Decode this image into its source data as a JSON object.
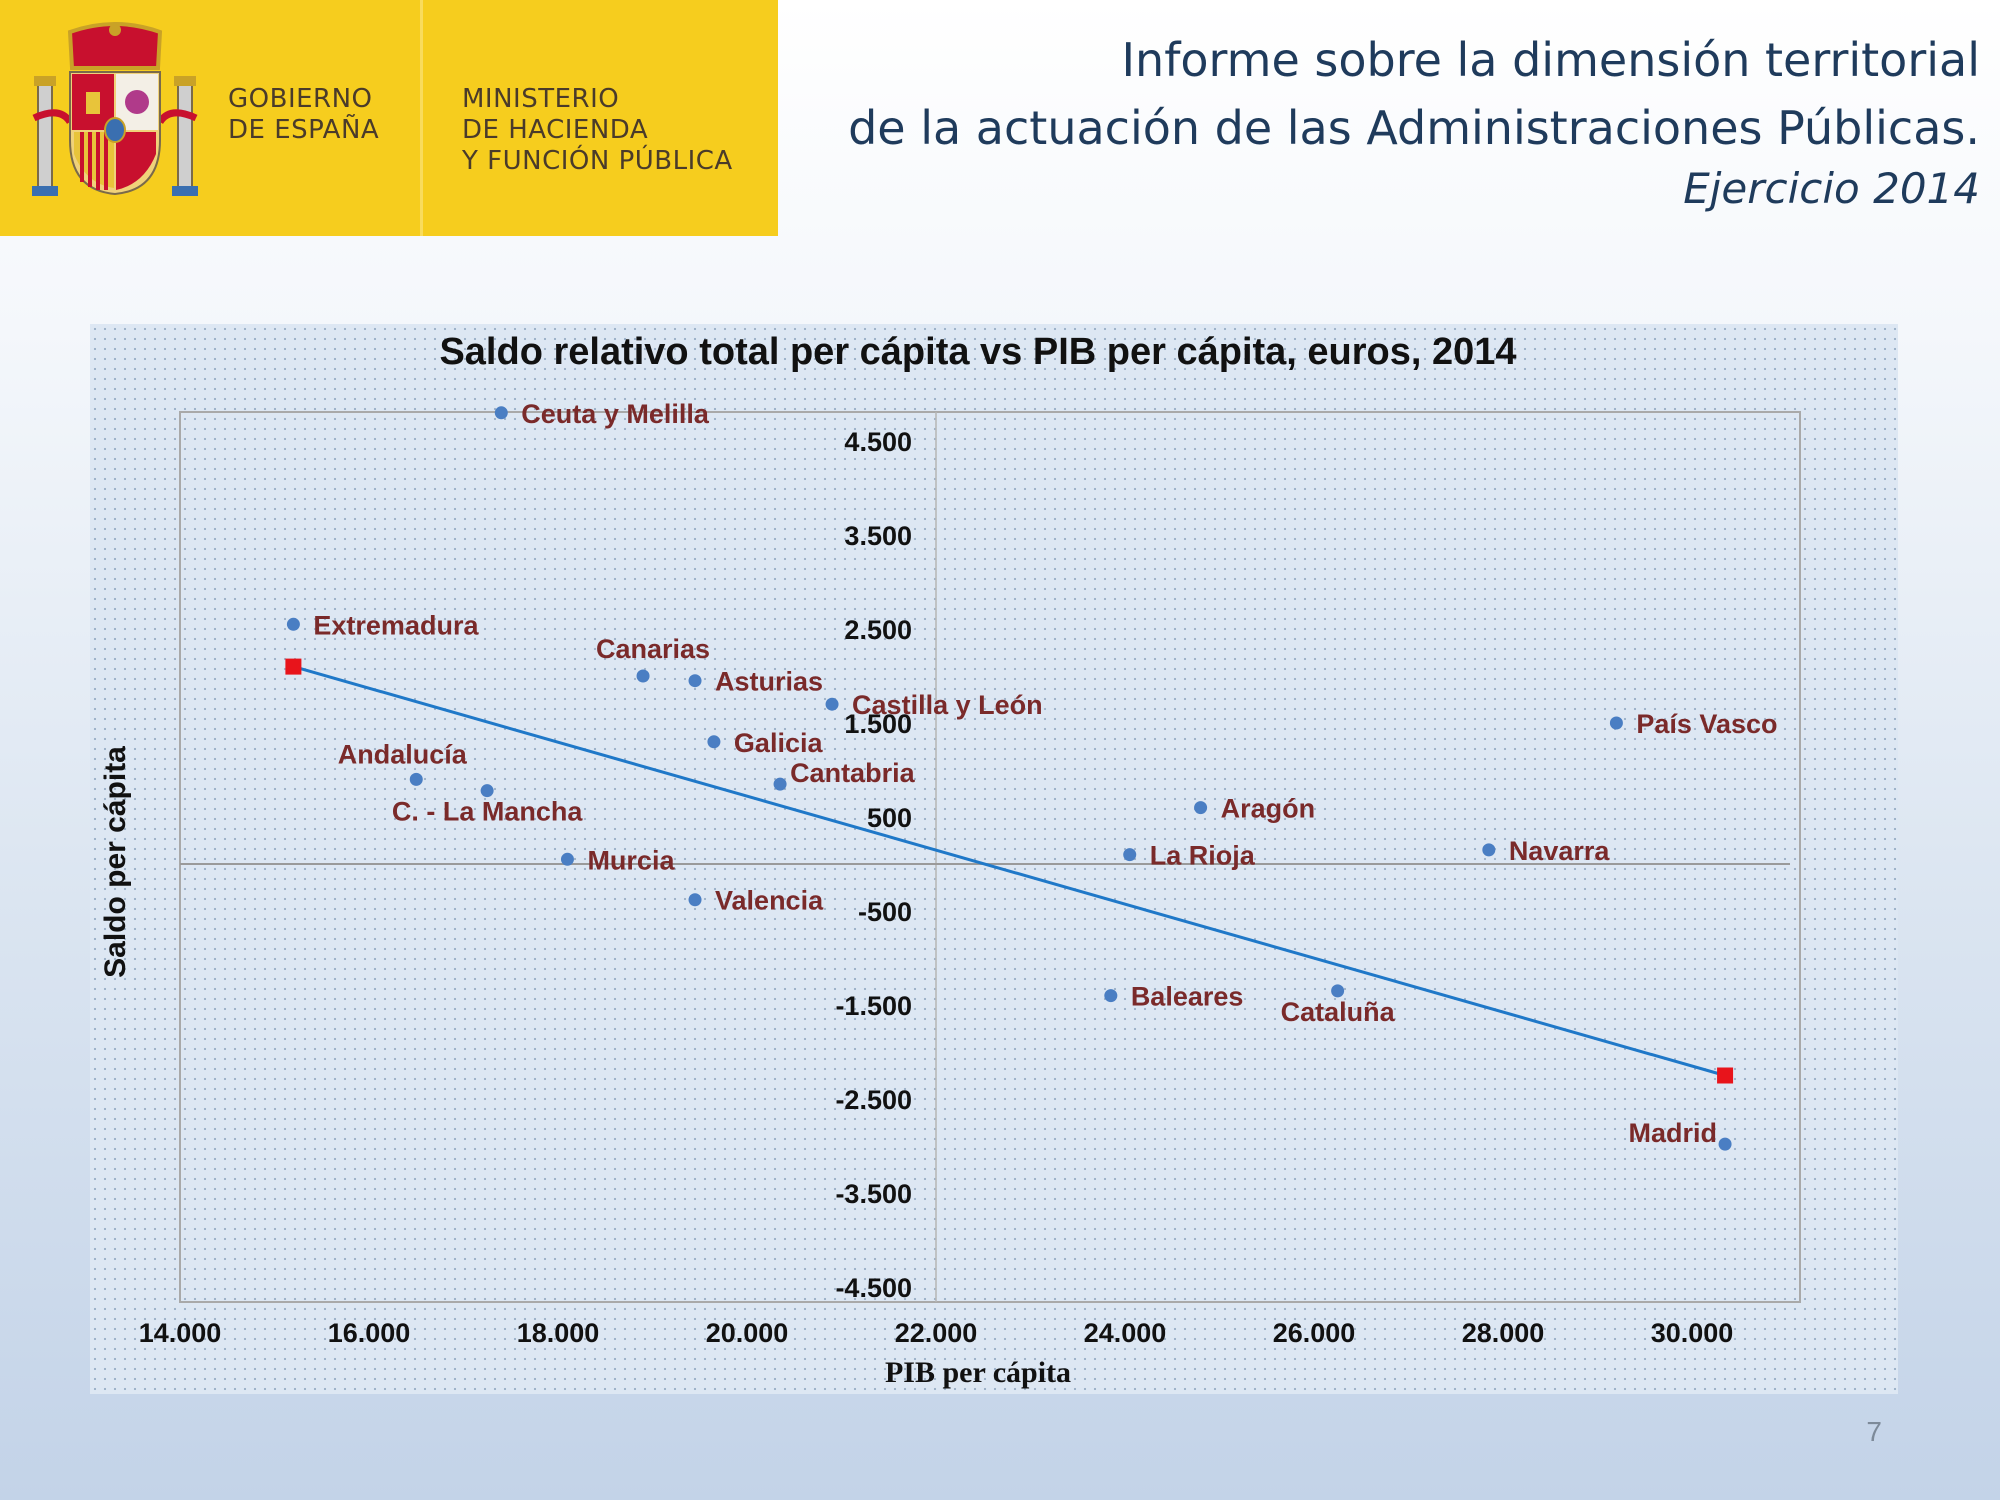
{
  "logo": {
    "gobierno_lines": [
      "GOBIERNO",
      "DE ESPAÑA"
    ],
    "ministerio_lines": [
      "MINISTERIO",
      "DE HACIENDA",
      "Y FUNCIÓN PÚBLICA"
    ],
    "brand_color": "#f6cd1e"
  },
  "header": {
    "title_line1": "Informe sobre la dimensión territorial",
    "title_line2": "de la actuación de las Administraciones Públicas.",
    "subtitle": "Ejercicio 2014"
  },
  "page_number": "7",
  "chart_data": {
    "type": "scatter",
    "title": "Saldo relativo total per cápita vs PIB per cápita, euros, 2014",
    "xlabel": "PIB per cápita",
    "ylabel": "Saldo per cápita",
    "xlim": [
      14000,
      31000
    ],
    "ylim": [
      -4500,
      5000
    ],
    "x_axis_crosses_y_at": 22000,
    "x_ticks": [
      14000,
      16000,
      18000,
      20000,
      22000,
      24000,
      26000,
      28000,
      30000
    ],
    "x_tick_labels": [
      "14.000",
      "16.000",
      "18.000",
      "20.000",
      "22.000",
      "24.000",
      "26.000",
      "28.000",
      "30.000"
    ],
    "y_ticks": [
      4500,
      3500,
      2500,
      1500,
      500,
      -500,
      -1500,
      -2500,
      -3500,
      -4500
    ],
    "y_tick_labels": [
      "4.500",
      "3.500",
      "2.500",
      "1.500",
      "500",
      "-500",
      "-1.500",
      "-2.500",
      "-3.500",
      "-4.500"
    ],
    "point_color": "#4a7ec3",
    "label_color": "#7a2a2a",
    "points": [
      {
        "name": "Ceuta y Melilla",
        "x": 17400,
        "y": 4800,
        "anchor": "right"
      },
      {
        "name": "Extremadura",
        "x": 15200,
        "y": 2550,
        "anchor": "right"
      },
      {
        "name": "Canarias",
        "x": 18900,
        "y": 2000,
        "anchor": "above"
      },
      {
        "name": "Asturias",
        "x": 19450,
        "y": 1950,
        "anchor": "right"
      },
      {
        "name": "Castilla y León",
        "x": 20900,
        "y": 1700,
        "anchor": "right"
      },
      {
        "name": "Galicia",
        "x": 19650,
        "y": 1300,
        "anchor": "right"
      },
      {
        "name": "Cantabria",
        "x": 20350,
        "y": 850,
        "anchor": "right-up"
      },
      {
        "name": "Andalucía",
        "x": 16500,
        "y": 900,
        "anchor": "above-left"
      },
      {
        "name": "C. - La Mancha",
        "x": 17250,
        "y": 780,
        "anchor": "below"
      },
      {
        "name": "Murcia",
        "x": 18100,
        "y": 50,
        "anchor": "right"
      },
      {
        "name": "Valencia",
        "x": 19450,
        "y": -380,
        "anchor": "right"
      },
      {
        "name": "País Vasco",
        "x": 29200,
        "y": 1500,
        "anchor": "right"
      },
      {
        "name": "Aragón",
        "x": 24800,
        "y": 600,
        "anchor": "right"
      },
      {
        "name": "La Rioja",
        "x": 24050,
        "y": 100,
        "anchor": "right"
      },
      {
        "name": "Navarra",
        "x": 27850,
        "y": 150,
        "anchor": "right"
      },
      {
        "name": "Baleares",
        "x": 23850,
        "y": -1400,
        "anchor": "right"
      },
      {
        "name": "Cataluña",
        "x": 26250,
        "y": -1350,
        "anchor": "below"
      },
      {
        "name": "Madrid",
        "x": 30350,
        "y": -2980,
        "anchor": "left"
      }
    ],
    "trendline": {
      "color": "#1f78c8",
      "marker_color": "#e8141b",
      "start": {
        "x": 15200,
        "y": 2100
      },
      "end": {
        "x": 30350,
        "y": -2250
      }
    }
  }
}
